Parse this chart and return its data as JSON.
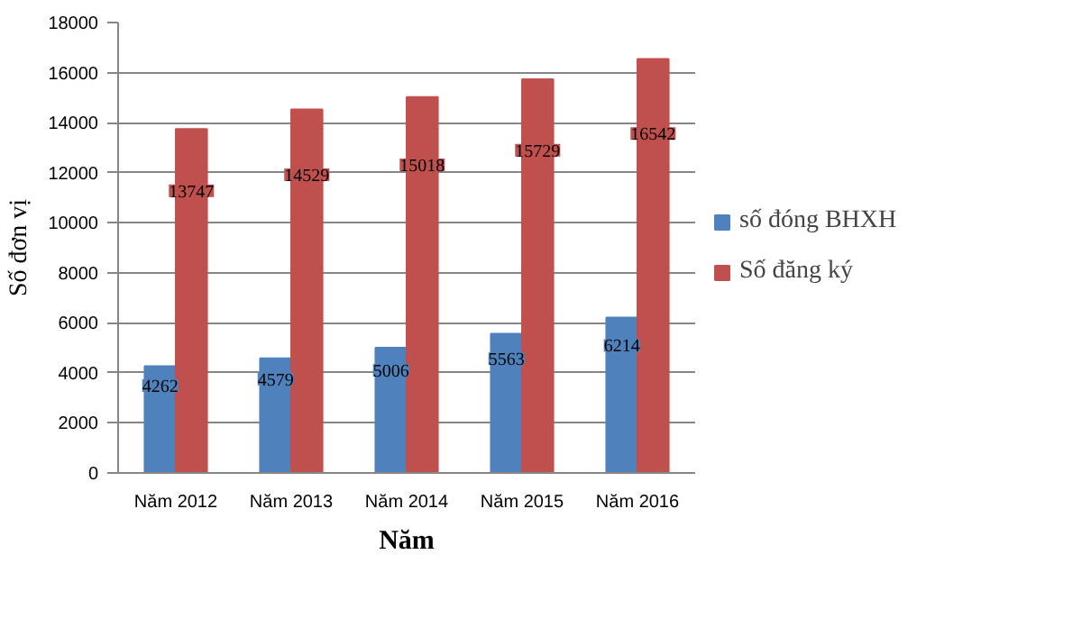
{
  "chart_data": {
    "type": "bar",
    "xlabel": "Năm",
    "ylabel": "Số đơn vị",
    "categories": [
      "Năm 2012",
      "Năm 2013",
      "Năm 2014",
      "Năm 2015",
      "Năm 2016"
    ],
    "series": [
      {
        "name": "số đóng BHXH",
        "color": "#4f81bd",
        "values": [
          4262,
          4579,
          5006,
          5563,
          6214
        ]
      },
      {
        "name": "Số đăng ký",
        "color": "#c0504d",
        "values": [
          13747,
          14529,
          15018,
          15729,
          16542
        ]
      }
    ],
    "ylim": [
      0,
      18000
    ],
    "yticks": [
      0,
      2000,
      4000,
      6000,
      8000,
      10000,
      12000,
      14000,
      16000,
      18000
    ],
    "grid": "y",
    "legend": "right",
    "data_labels": true
  }
}
